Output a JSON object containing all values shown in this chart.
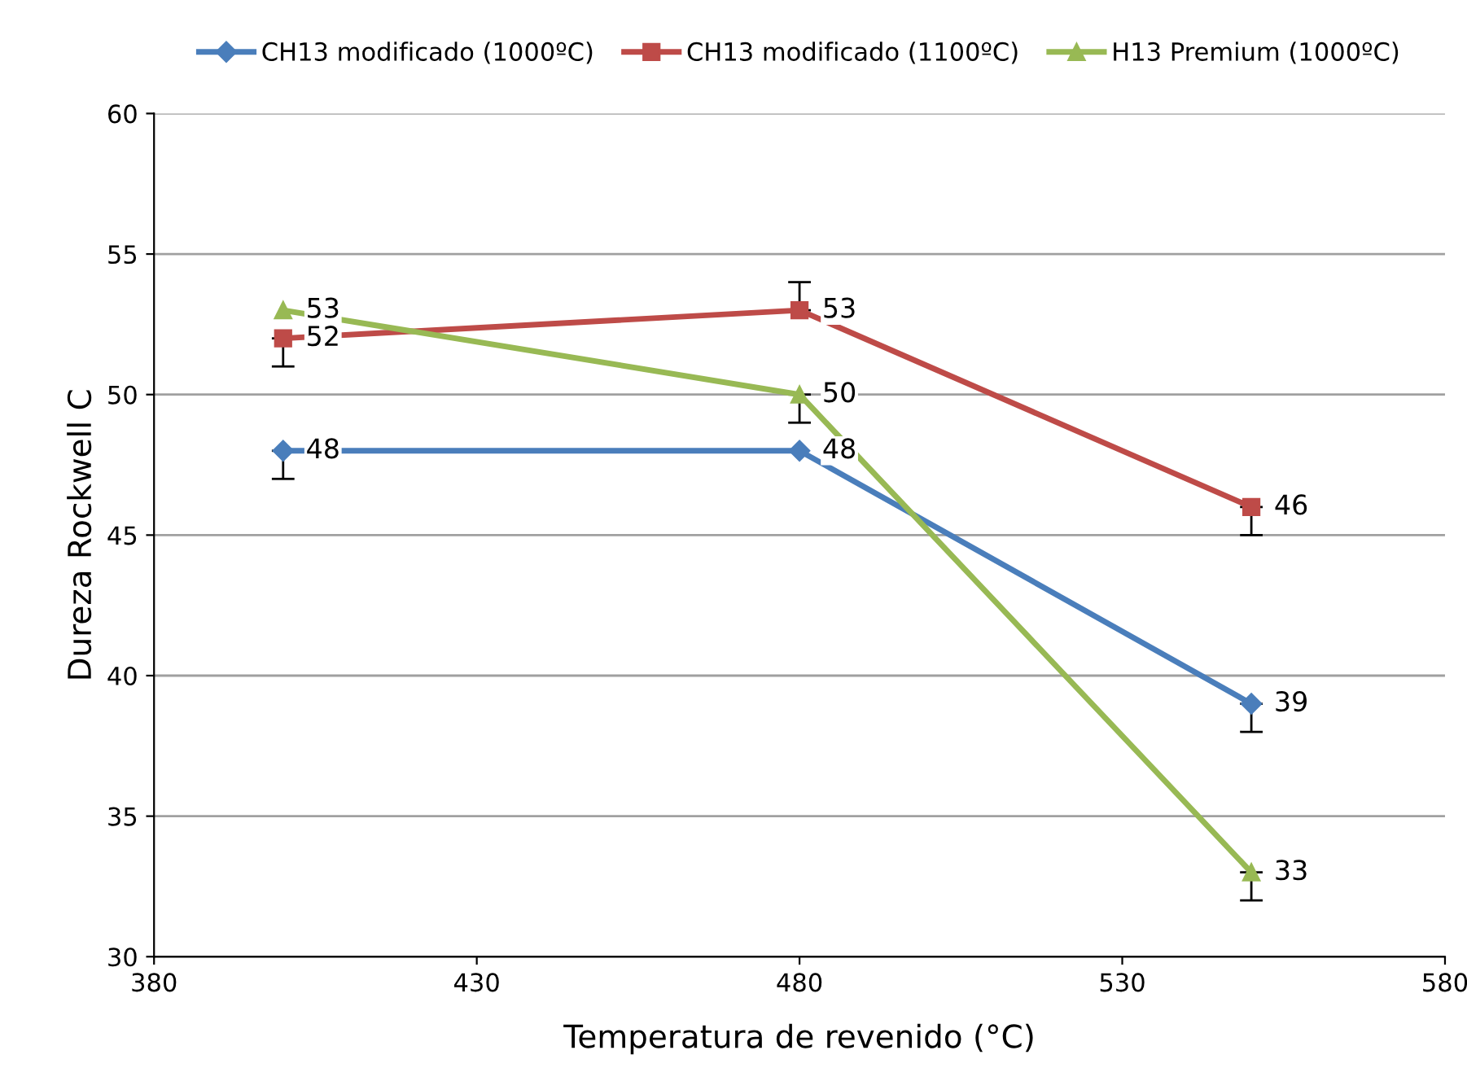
{
  "chart_data": {
    "type": "line",
    "xlabel": "Temperatura de revenido (°C)",
    "ylabel": "Dureza Rockwell C",
    "x": [
      400,
      480,
      550
    ],
    "series": [
      {
        "name": "CH13 modificado (1000ºC)",
        "color": "#4a7ebb",
        "marker": "diamond",
        "values": [
          48,
          48,
          39
        ],
        "errors": [
          [
            47,
            48
          ],
          null,
          [
            38,
            39
          ]
        ]
      },
      {
        "name": "CH13 modificado (1100ºC)",
        "color": "#be4b48",
        "marker": "square",
        "values": [
          52,
          53,
          46
        ],
        "errors": [
          [
            51,
            52
          ],
          [
            53,
            54
          ],
          [
            45,
            46
          ]
        ]
      },
      {
        "name": "H13 Premium (1000ºC)",
        "color": "#98b954",
        "marker": "triangle",
        "values": [
          53,
          50,
          33
        ],
        "errors": [
          null,
          [
            49,
            50
          ],
          [
            32,
            33
          ]
        ]
      }
    ],
    "xlim": [
      380,
      580
    ],
    "xticks": [
      380,
      430,
      480,
      530,
      580
    ],
    "ylim": [
      30,
      60
    ],
    "yticks": [
      30,
      35,
      40,
      45,
      50,
      55,
      60
    ],
    "grid": "y",
    "legend": "top",
    "data_labels": true
  }
}
